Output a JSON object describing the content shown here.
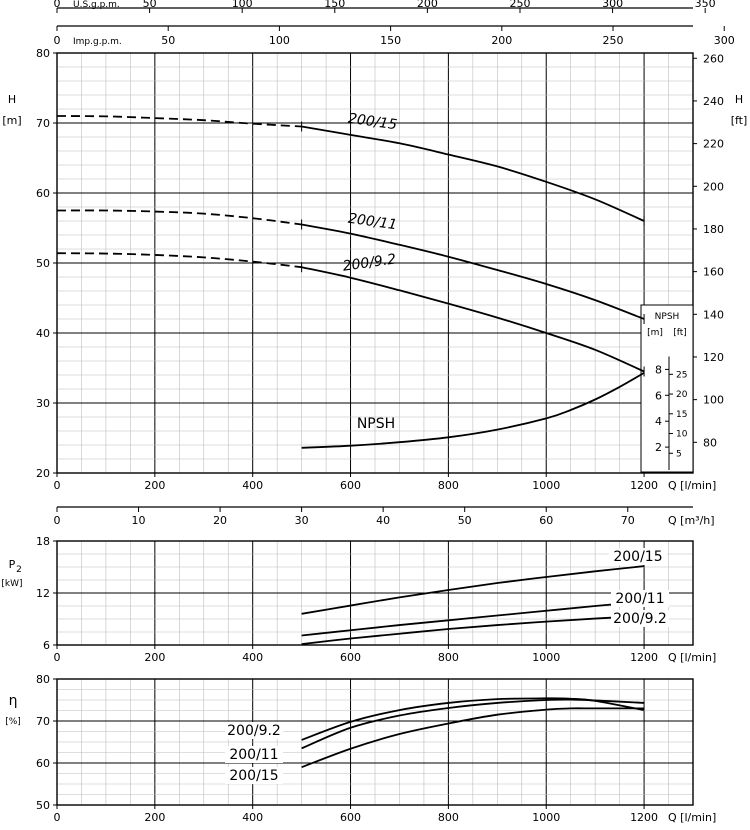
{
  "chart_data": [
    {
      "type": "line",
      "panel": "head",
      "ylabel": "H",
      "yunit": "[m]",
      "ylabel_right": "H",
      "yunit_right": "[ft]",
      "xunit": "Q [l/min]",
      "xlim": [
        0,
        1300
      ],
      "ylim": [
        20,
        80
      ],
      "xticks": [
        0,
        200,
        400,
        600,
        800,
        1000,
        1200
      ],
      "yticks": [
        20,
        30,
        40,
        50,
        60,
        70,
        80
      ],
      "yticks_right": [
        80,
        100,
        120,
        140,
        160,
        180,
        200,
        220,
        240,
        260
      ],
      "top_axes": [
        {
          "label": "U.S.g.p.m.",
          "ticks": [
            0,
            50,
            100,
            150,
            200,
            250,
            300,
            350
          ]
        },
        {
          "label": "Imp.g.p.m.",
          "ticks": [
            0,
            50,
            100,
            150,
            200,
            250,
            300
          ]
        }
      ],
      "bottom_axis2": {
        "label": "Q [m³/h]",
        "ticks": [
          0,
          10,
          20,
          30,
          40,
          50,
          60,
          70
        ]
      },
      "series": [
        {
          "name": "200/15",
          "x": [
            0,
            100,
            200,
            300,
            400,
            500,
            600,
            700,
            800,
            900,
            1000,
            1100,
            1200
          ],
          "y": [
            71,
            70.95,
            70.7,
            70.4,
            69.9,
            69.5,
            68.3,
            67.1,
            65.5,
            63.8,
            61.6,
            59.1,
            56
          ],
          "dashed_until": 500
        },
        {
          "name": "200/11",
          "x": [
            0,
            100,
            200,
            300,
            400,
            500,
            600,
            700,
            800,
            900,
            1000,
            1100,
            1200
          ],
          "y": [
            57.5,
            57.5,
            57.35,
            57.05,
            56.4,
            55.5,
            54.2,
            52.6,
            50.9,
            49,
            47,
            44.7,
            42
          ],
          "dashed_until": 500
        },
        {
          "name": "200/9.2",
          "x": [
            0,
            100,
            200,
            300,
            400,
            500,
            600,
            700,
            800,
            900,
            1000,
            1100,
            1200
          ],
          "y": [
            51.4,
            51.35,
            51.15,
            50.8,
            50.2,
            49.4,
            47.9,
            46.1,
            44.2,
            42.2,
            40,
            37.6,
            34.5
          ],
          "dashed_until": 500
        },
        {
          "name": "NPSH",
          "x": [
            500,
            600,
            700,
            800,
            900,
            1000,
            1050,
            1100,
            1150,
            1200
          ],
          "y": [
            23.6,
            23.9,
            24.4,
            25.1,
            26.2,
            27.8,
            29,
            30.5,
            32.3,
            34.3
          ]
        }
      ],
      "npsh_axis": {
        "title": "NPSH",
        "units": [
          "[m]",
          "[ft]"
        ],
        "m_ticks": [
          2,
          4,
          6,
          8
        ],
        "ft_ticks": [
          5,
          10,
          15,
          20,
          25
        ]
      }
    },
    {
      "type": "line",
      "panel": "power",
      "ylabel": "P",
      "ylabel_sub": "2",
      "yunit": "[kW]",
      "xunit": "Q [l/min]",
      "xlim": [
        0,
        1300
      ],
      "ylim": [
        6,
        18
      ],
      "xticks": [
        0,
        200,
        400,
        600,
        800,
        1000,
        1200
      ],
      "yticks": [
        6,
        12,
        18
      ],
      "series": [
        {
          "name": "200/15",
          "x": [
            500,
            600,
            700,
            800,
            900,
            1000,
            1100,
            1200
          ],
          "y": [
            9.6,
            10.55,
            11.5,
            12.35,
            13.15,
            13.85,
            14.5,
            15.1
          ]
        },
        {
          "name": "200/11",
          "x": [
            500,
            600,
            700,
            800,
            900,
            1000,
            1100,
            1200
          ],
          "y": [
            7.1,
            7.7,
            8.3,
            8.85,
            9.4,
            9.95,
            10.5,
            11
          ]
        },
        {
          "name": "200/9.2",
          "x": [
            500,
            600,
            700,
            800,
            900,
            1000,
            1100,
            1200
          ],
          "y": [
            6.1,
            6.75,
            7.3,
            7.85,
            8.3,
            8.7,
            9.05,
            9.35
          ]
        }
      ]
    },
    {
      "type": "line",
      "panel": "efficiency",
      "ylabel": "η",
      "yunit": "[%]",
      "xunit": "Q [l/min]",
      "xlim": [
        0,
        1300
      ],
      "ylim": [
        50,
        80
      ],
      "xticks": [
        0,
        200,
        400,
        600,
        800,
        1000,
        1200
      ],
      "yticks": [
        50,
        60,
        70,
        80
      ],
      "series": [
        {
          "name": "200/9.2",
          "x": [
            500,
            600,
            700,
            800,
            900,
            1000,
            1050,
            1100,
            1200
          ],
          "y": [
            65.5,
            69.8,
            72.6,
            74.3,
            75.2,
            75.4,
            75.3,
            74.8,
            72.6
          ]
        },
        {
          "name": "200/11",
          "x": [
            500,
            600,
            700,
            800,
            900,
            1000,
            1050,
            1100,
            1200
          ],
          "y": [
            63.5,
            68.4,
            71.3,
            73.1,
            74.3,
            75,
            75.1,
            74.9,
            74.3
          ]
        },
        {
          "name": "200/15",
          "x": [
            500,
            600,
            700,
            800,
            900,
            1000,
            1050,
            1100,
            1200
          ],
          "y": [
            59,
            63.4,
            66.9,
            69.4,
            71.5,
            72.7,
            73,
            73,
            73
          ]
        }
      ]
    }
  ]
}
